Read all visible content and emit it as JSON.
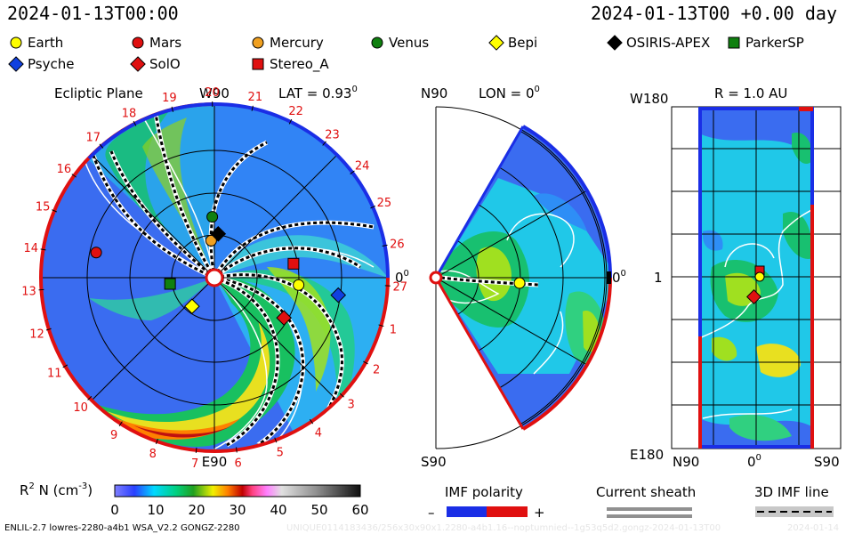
{
  "header": {
    "left_date": "2024-01-13T00:00",
    "right_date": "2024-01-13T00 +0.00 day"
  },
  "legend": [
    {
      "name": "Earth",
      "marker": "circle",
      "color": "#ffff00"
    },
    {
      "name": "Mars",
      "marker": "circle",
      "color": "#e01010"
    },
    {
      "name": "Mercury",
      "marker": "circle",
      "color": "#f0a020"
    },
    {
      "name": "Venus",
      "marker": "circle",
      "color": "#108010"
    },
    {
      "name": "Bepi",
      "marker": "diamond",
      "color": "#ffff00"
    },
    {
      "name": "OSIRIS-APEX",
      "marker": "diamond",
      "color": "#000000"
    },
    {
      "name": "ParkerSP",
      "marker": "square",
      "color": "#108010"
    },
    {
      "name": "Psyche",
      "marker": "diamond",
      "color": "#1040e0"
    },
    {
      "name": "SolO",
      "marker": "diamond",
      "color": "#e01010"
    },
    {
      "name": "Stereo_A",
      "marker": "square",
      "color": "#e01010"
    }
  ],
  "panels": {
    "ecliptic": {
      "title": "Ecliptic Plane",
      "lat_label": "LAT = 0.93",
      "lat_sup": "0",
      "top_label": "W90",
      "bottom_label": "E90",
      "right_label": "0",
      "right_sup": "0",
      "carrington_labels": [
        "19",
        "20",
        "21",
        "22",
        "23",
        "24",
        "25",
        "26",
        "27",
        "1",
        "2",
        "3",
        "4",
        "5",
        "6",
        "7",
        "8",
        "9",
        "10",
        "11",
        "12",
        "13",
        "14",
        "15",
        "16",
        "17",
        "18"
      ]
    },
    "meridional": {
      "top_left": "N90",
      "lon_label": "LON = 0",
      "lon_sup": "0",
      "right_label": "0",
      "right_sup": "0",
      "bottom_left": "S90"
    },
    "radial": {
      "title": "R = 1.0 AU",
      "top_left": "W180",
      "mid_left": "1",
      "bottom_left": "E180",
      "x_left": "N90",
      "x_mid": "0",
      "x_mid_sup": "0",
      "x_right": "S90"
    }
  },
  "colorbar": {
    "label_prefix": "R",
    "label_sup1": "2",
    "label_mid": " N (cm",
    "label_sup2": "-3",
    "label_suffix": ")",
    "ticks": [
      "0",
      "10",
      "20",
      "30",
      "40",
      "50",
      "60"
    ]
  },
  "imf": {
    "polarity_title": "IMF polarity",
    "minus": "–",
    "plus": "+",
    "sheath_title": "Current sheath",
    "line_title": "3D IMF line"
  },
  "footer": {
    "left": "ENLIL-2.7 lowres-2280-a4b1 WSA_V2.2 GONGZ-2280",
    "middle": "UNIQUE0114183436/256x30x90x1.2280-a4b1.16--noptumnied--1g53q5d2.gongz-2024-01-13T00",
    "right": "2024-01-14"
  },
  "chart_data": [
    {
      "type": "heatmap",
      "title": "Ecliptic Plane",
      "quantity": "R^2 N (cm^-3)",
      "range": [
        0,
        60
      ],
      "lat_deg": 0.93,
      "objects": [
        {
          "name": "Earth",
          "carrington_lon_deg": 355,
          "r_au": 1.0
        },
        {
          "name": "Mars",
          "carrington_lon_deg": 168,
          "r_au": 1.43
        },
        {
          "name": "Mercury",
          "carrington_lon_deg": 95,
          "r_au": 0.44
        },
        {
          "name": "Venus",
          "carrington_lon_deg": 92,
          "r_au": 0.72
        },
        {
          "name": "Bepi",
          "carrington_lon_deg": 232,
          "r_au": 0.43
        },
        {
          "name": "OSIRIS-APEX",
          "carrington_lon_deg": 85,
          "r_au": 0.52
        },
        {
          "name": "ParkerSP",
          "carrington_lon_deg": 188,
          "r_au": 0.53
        },
        {
          "name": "Psyche",
          "carrington_lon_deg": 352,
          "r_au": 1.48
        },
        {
          "name": "SolO",
          "carrington_lon_deg": 330,
          "r_au": 0.95
        },
        {
          "name": "Stereo_A",
          "carrington_lon_deg": 10,
          "r_au": 0.95
        }
      ]
    },
    {
      "type": "heatmap",
      "title": "Meridional plane",
      "lon_deg": 0,
      "theta_range_deg": [
        -60,
        60
      ]
    },
    {
      "type": "heatmap",
      "title": "R = 1.0 AU",
      "x_range": [
        "N90",
        "S90"
      ],
      "y_range": [
        "E180",
        "W180"
      ]
    }
  ]
}
